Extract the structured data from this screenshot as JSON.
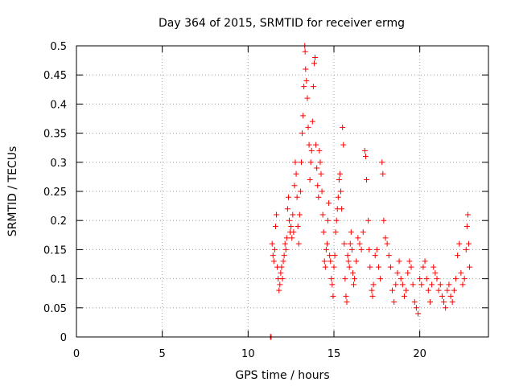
{
  "chart_data": {
    "type": "scatter",
    "title": "Day 364 of 2015, SRMTID for receiver ermg",
    "xlabel": "GPS time / hours",
    "ylabel": "SRMTID / TECUs",
    "xlim": [
      0,
      24
    ],
    "ylim": [
      0,
      0.5
    ],
    "x_ticks": [
      0,
      5,
      10,
      15,
      20
    ],
    "x_tick_labels": [
      "0",
      "5",
      "10",
      "15",
      "20"
    ],
    "y_ticks": [
      0,
      0.05,
      0.1,
      0.15,
      0.2,
      0.25,
      0.3,
      0.35,
      0.4,
      0.45,
      0.5
    ],
    "y_tick_labels": [
      "0",
      "0.05",
      "0.1",
      "0.15",
      "0.2",
      "0.25",
      "0.3",
      "0.35",
      "0.4",
      "0.45",
      "0.5"
    ],
    "grid": true,
    "marker": "+",
    "color": "#ff0000",
    "series": [
      {
        "name": "SRMTID",
        "points": [
          [
            11.3,
            0.0
          ],
          [
            11.32,
            0.0
          ],
          [
            11.34,
            0.0
          ],
          [
            11.4,
            0.16
          ],
          [
            11.45,
            0.14
          ],
          [
            11.5,
            0.13
          ],
          [
            11.55,
            0.15
          ],
          [
            11.6,
            0.19
          ],
          [
            11.65,
            0.21
          ],
          [
            11.7,
            0.12
          ],
          [
            11.75,
            0.1
          ],
          [
            11.8,
            0.08
          ],
          [
            11.85,
            0.09
          ],
          [
            11.9,
            0.11
          ],
          [
            11.95,
            0.12
          ],
          [
            12.0,
            0.1
          ],
          [
            12.05,
            0.13
          ],
          [
            12.1,
            0.14
          ],
          [
            12.15,
            0.16
          ],
          [
            12.2,
            0.15
          ],
          [
            12.25,
            0.17
          ],
          [
            12.3,
            0.22
          ],
          [
            12.35,
            0.24
          ],
          [
            12.4,
            0.2
          ],
          [
            12.45,
            0.18
          ],
          [
            12.5,
            0.19
          ],
          [
            12.55,
            0.17
          ],
          [
            12.6,
            0.21
          ],
          [
            12.65,
            0.18
          ],
          [
            12.7,
            0.26
          ],
          [
            12.75,
            0.3
          ],
          [
            12.8,
            0.28
          ],
          [
            12.85,
            0.24
          ],
          [
            12.9,
            0.19
          ],
          [
            12.95,
            0.16
          ],
          [
            13.0,
            0.21
          ],
          [
            13.05,
            0.25
          ],
          [
            13.1,
            0.3
          ],
          [
            13.15,
            0.35
          ],
          [
            13.2,
            0.38
          ],
          [
            13.25,
            0.43
          ],
          [
            13.3,
            0.5
          ],
          [
            13.32,
            0.49
          ],
          [
            13.35,
            0.46
          ],
          [
            13.4,
            0.44
          ],
          [
            13.45,
            0.41
          ],
          [
            13.5,
            0.36
          ],
          [
            13.55,
            0.33
          ],
          [
            13.6,
            0.27
          ],
          [
            13.65,
            0.3
          ],
          [
            13.7,
            0.32
          ],
          [
            13.75,
            0.37
          ],
          [
            13.8,
            0.43
          ],
          [
            13.85,
            0.47
          ],
          [
            13.9,
            0.48
          ],
          [
            13.95,
            0.33
          ],
          [
            14.0,
            0.29
          ],
          [
            14.05,
            0.26
          ],
          [
            14.1,
            0.24
          ],
          [
            14.15,
            0.32
          ],
          [
            14.2,
            0.3
          ],
          [
            14.25,
            0.28
          ],
          [
            14.3,
            0.25
          ],
          [
            14.35,
            0.21
          ],
          [
            14.4,
            0.18
          ],
          [
            14.45,
            0.13
          ],
          [
            14.5,
            0.12
          ],
          [
            14.55,
            0.15
          ],
          [
            14.6,
            0.16
          ],
          [
            14.65,
            0.2
          ],
          [
            14.7,
            0.23
          ],
          [
            14.75,
            0.14
          ],
          [
            14.8,
            0.13
          ],
          [
            14.85,
            0.1
          ],
          [
            14.9,
            0.09
          ],
          [
            14.95,
            0.07
          ],
          [
            15.0,
            0.12
          ],
          [
            15.05,
            0.14
          ],
          [
            15.1,
            0.18
          ],
          [
            15.15,
            0.2
          ],
          [
            15.2,
            0.22
          ],
          [
            15.25,
            0.24
          ],
          [
            15.3,
            0.27
          ],
          [
            15.35,
            0.28
          ],
          [
            15.4,
            0.25
          ],
          [
            15.45,
            0.22
          ],
          [
            15.5,
            0.36
          ],
          [
            15.55,
            0.33
          ],
          [
            15.6,
            0.16
          ],
          [
            15.65,
            0.1
          ],
          [
            15.7,
            0.07
          ],
          [
            15.75,
            0.06
          ],
          [
            15.8,
            0.14
          ],
          [
            15.85,
            0.13
          ],
          [
            15.9,
            0.12
          ],
          [
            15.95,
            0.16
          ],
          [
            16.0,
            0.18
          ],
          [
            16.05,
            0.15
          ],
          [
            16.1,
            0.11
          ],
          [
            16.15,
            0.09
          ],
          [
            16.2,
            0.1
          ],
          [
            16.3,
            0.13
          ],
          [
            16.4,
            0.17
          ],
          [
            16.5,
            0.16
          ],
          [
            16.6,
            0.15
          ],
          [
            16.7,
            0.18
          ],
          [
            16.8,
            0.32
          ],
          [
            16.85,
            0.31
          ],
          [
            16.9,
            0.27
          ],
          [
            17.0,
            0.2
          ],
          [
            17.05,
            0.15
          ],
          [
            17.1,
            0.12
          ],
          [
            17.2,
            0.08
          ],
          [
            17.25,
            0.07
          ],
          [
            17.3,
            0.09
          ],
          [
            17.4,
            0.14
          ],
          [
            17.5,
            0.15
          ],
          [
            17.6,
            0.12
          ],
          [
            17.7,
            0.1
          ],
          [
            17.8,
            0.3
          ],
          [
            17.85,
            0.28
          ],
          [
            17.9,
            0.2
          ],
          [
            18.0,
            0.17
          ],
          [
            18.1,
            0.16
          ],
          [
            18.2,
            0.14
          ],
          [
            18.3,
            0.12
          ],
          [
            18.4,
            0.08
          ],
          [
            18.5,
            0.06
          ],
          [
            18.6,
            0.09
          ],
          [
            18.7,
            0.11
          ],
          [
            18.8,
            0.13
          ],
          [
            18.9,
            0.1
          ],
          [
            19.0,
            0.09
          ],
          [
            19.1,
            0.07
          ],
          [
            19.2,
            0.08
          ],
          [
            19.3,
            0.11
          ],
          [
            19.4,
            0.13
          ],
          [
            19.5,
            0.12
          ],
          [
            19.6,
            0.09
          ],
          [
            19.7,
            0.06
          ],
          [
            19.8,
            0.05
          ],
          [
            19.9,
            0.04
          ],
          [
            20.0,
            0.1
          ],
          [
            20.1,
            0.09
          ],
          [
            20.2,
            0.12
          ],
          [
            20.3,
            0.13
          ],
          [
            20.4,
            0.1
          ],
          [
            20.5,
            0.08
          ],
          [
            20.6,
            0.06
          ],
          [
            20.7,
            0.09
          ],
          [
            20.8,
            0.12
          ],
          [
            20.9,
            0.11
          ],
          [
            21.0,
            0.1
          ],
          [
            21.1,
            0.08
          ],
          [
            21.2,
            0.09
          ],
          [
            21.3,
            0.07
          ],
          [
            21.4,
            0.06
          ],
          [
            21.5,
            0.05
          ],
          [
            21.6,
            0.08
          ],
          [
            21.7,
            0.09
          ],
          [
            21.8,
            0.07
          ],
          [
            21.9,
            0.06
          ],
          [
            22.0,
            0.08
          ],
          [
            22.1,
            0.1
          ],
          [
            22.2,
            0.14
          ],
          [
            22.3,
            0.16
          ],
          [
            22.4,
            0.11
          ],
          [
            22.5,
            0.09
          ],
          [
            22.6,
            0.1
          ],
          [
            22.7,
            0.15
          ],
          [
            22.75,
            0.19
          ],
          [
            22.8,
            0.21
          ],
          [
            22.85,
            0.16
          ],
          [
            22.9,
            0.12
          ]
        ]
      }
    ]
  }
}
